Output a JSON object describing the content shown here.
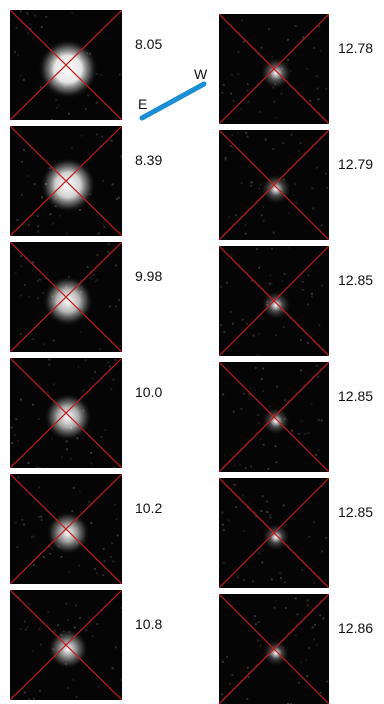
{
  "compass": {
    "east_label": "E",
    "west_label": "W",
    "bar_color": "#1a8fd6"
  },
  "mark_color": "#c41a1a",
  "left_column": [
    {
      "label": "8.05",
      "star_brightness": 1.0
    },
    {
      "label": "8.39",
      "star_brightness": 0.9
    },
    {
      "label": "9.98",
      "star_brightness": 0.78
    },
    {
      "label": "10.0",
      "star_brightness": 0.72
    },
    {
      "label": "10.2",
      "star_brightness": 0.62
    },
    {
      "label": "10.8",
      "star_brightness": 0.55
    }
  ],
  "right_column": [
    {
      "label": "12.78",
      "star_brightness": 0.35
    },
    {
      "label": "12.79",
      "star_brightness": 0.32
    },
    {
      "label": "12.85",
      "star_brightness": 0.3
    },
    {
      "label": "12.85",
      "star_brightness": 0.28
    },
    {
      "label": "12.85",
      "star_brightness": 0.27
    },
    {
      "label": "12.86",
      "star_brightness": 0.25
    }
  ]
}
